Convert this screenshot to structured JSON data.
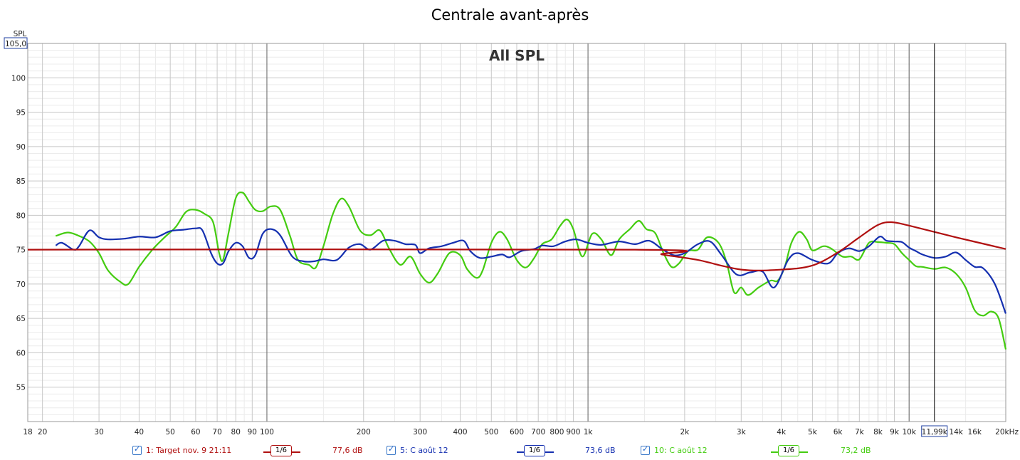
{
  "window": {
    "title": "Centrale avant-après"
  },
  "chart_data": {
    "type": "line",
    "title": "Centrale avant-après",
    "subtitle": "All SPL",
    "xscale": "log",
    "xlim": [
      18,
      20000
    ],
    "ylim": [
      50,
      105
    ],
    "ylabel": "SPL",
    "y_top_box": "105,0",
    "cursor_label": "11,99k",
    "cursor_x": 11990,
    "grid": true,
    "y_ticks": [
      55,
      60,
      65,
      70,
      75,
      80,
      85,
      90,
      95,
      100
    ],
    "x_ticks": [
      {
        "v": 18,
        "l": "18"
      },
      {
        "v": 20,
        "l": "20"
      },
      {
        "v": 30,
        "l": "30"
      },
      {
        "v": 40,
        "l": "40"
      },
      {
        "v": 50,
        "l": "50"
      },
      {
        "v": 60,
        "l": "60"
      },
      {
        "v": 70,
        "l": "70"
      },
      {
        "v": 80,
        "l": "80"
      },
      {
        "v": 90,
        "l": "90"
      },
      {
        "v": 100,
        "l": "100"
      },
      {
        "v": 200,
        "l": "200"
      },
      {
        "v": 300,
        "l": "300"
      },
      {
        "v": 400,
        "l": "400"
      },
      {
        "v": 500,
        "l": "500"
      },
      {
        "v": 600,
        "l": "600"
      },
      {
        "v": 700,
        "l": "700"
      },
      {
        "v": 800,
        "l": "800"
      },
      {
        "v": 900,
        "l": "900"
      },
      {
        "v": 1000,
        "l": "1k"
      },
      {
        "v": 2000,
        "l": "2k"
      },
      {
        "v": 3000,
        "l": "3k"
      },
      {
        "v": 4000,
        "l": "4k"
      },
      {
        "v": 5000,
        "l": "5k"
      },
      {
        "v": 6000,
        "l": "6k"
      },
      {
        "v": 7000,
        "l": "7k"
      },
      {
        "v": 8000,
        "l": "8k"
      },
      {
        "v": 9000,
        "l": "9k"
      },
      {
        "v": 10000,
        "l": "10k"
      },
      {
        "v": 14000,
        "l": "14k"
      },
      {
        "v": 16000,
        "l": "16k"
      },
      {
        "v": 20000,
        "l": "20kHz"
      }
    ],
    "series": [
      {
        "name": "1: Target nov. 9 21:11",
        "color": "#b01010",
        "smoothing": "1/6",
        "level": "77,6 dB",
        "points": [
          [
            18,
            75
          ],
          [
            1400,
            75
          ],
          [
            1700,
            74.3
          ],
          [
            2200,
            73.5
          ],
          [
            3000,
            72.1
          ],
          [
            4000,
            72.1
          ],
          [
            5000,
            72.7
          ],
          [
            6000,
            74.6
          ],
          [
            7000,
            76.8
          ],
          [
            8000,
            78.6
          ],
          [
            8800,
            79
          ],
          [
            10000,
            78.5
          ],
          [
            14000,
            76.8
          ],
          [
            20000,
            75.1
          ]
        ]
      },
      {
        "name": "5: C août 12",
        "color": "#1530b0",
        "smoothing": "1/6",
        "level": "73,6 dB",
        "points": [
          [
            22,
            75.6
          ],
          [
            23,
            76
          ],
          [
            25,
            75
          ],
          [
            26,
            75.5
          ],
          [
            28,
            77.8
          ],
          [
            30,
            76.8
          ],
          [
            32,
            76.5
          ],
          [
            36,
            76.6
          ],
          [
            40,
            76.9
          ],
          [
            45,
            76.8
          ],
          [
            50,
            77.7
          ],
          [
            55,
            77.9
          ],
          [
            60,
            78.1
          ],
          [
            63,
            77.8
          ],
          [
            67,
            74.5
          ],
          [
            70,
            73
          ],
          [
            73,
            73
          ],
          [
            76,
            74.8
          ],
          [
            80,
            76
          ],
          [
            84,
            75.5
          ],
          [
            88,
            73.8
          ],
          [
            92,
            74.2
          ],
          [
            97,
            77.3
          ],
          [
            103,
            78
          ],
          [
            110,
            77.1
          ],
          [
            120,
            74
          ],
          [
            130,
            73.3
          ],
          [
            140,
            73.3
          ],
          [
            150,
            73.6
          ],
          [
            165,
            73.5
          ],
          [
            180,
            75.3
          ],
          [
            195,
            75.8
          ],
          [
            210,
            75
          ],
          [
            230,
            76.3
          ],
          [
            250,
            76.3
          ],
          [
            270,
            75.8
          ],
          [
            290,
            75.7
          ],
          [
            300,
            74.5
          ],
          [
            320,
            75.2
          ],
          [
            350,
            75.5
          ],
          [
            380,
            76
          ],
          [
            410,
            76.3
          ],
          [
            430,
            74.8
          ],
          [
            460,
            73.8
          ],
          [
            500,
            74
          ],
          [
            540,
            74.3
          ],
          [
            570,
            73.9
          ],
          [
            620,
            74.8
          ],
          [
            680,
            75.1
          ],
          [
            720,
            75.6
          ],
          [
            780,
            75.5
          ],
          [
            850,
            76.2
          ],
          [
            920,
            76.5
          ],
          [
            1000,
            76
          ],
          [
            1100,
            75.7
          ],
          [
            1250,
            76.2
          ],
          [
            1400,
            75.8
          ],
          [
            1550,
            76.3
          ],
          [
            1700,
            75.1
          ],
          [
            1850,
            74.2
          ],
          [
            2000,
            74.5
          ],
          [
            2200,
            75.8
          ],
          [
            2400,
            76.2
          ],
          [
            2600,
            74.3
          ],
          [
            2900,
            71.4
          ],
          [
            3200,
            71.7
          ],
          [
            3500,
            71.8
          ],
          [
            3800,
            69.5
          ],
          [
            4200,
            73.5
          ],
          [
            4500,
            74.5
          ],
          [
            5000,
            73.5
          ],
          [
            5600,
            73
          ],
          [
            6000,
            74.5
          ],
          [
            6500,
            75.2
          ],
          [
            7000,
            74.8
          ],
          [
            7500,
            75.5
          ],
          [
            8100,
            76.9
          ],
          [
            8500,
            76.3
          ],
          [
            9000,
            76.2
          ],
          [
            9500,
            76.1
          ],
          [
            10000,
            75.3
          ],
          [
            10500,
            74.8
          ],
          [
            11000,
            74.3
          ],
          [
            12000,
            73.8
          ],
          [
            13000,
            74
          ],
          [
            14000,
            74.6
          ],
          [
            15000,
            73.5
          ],
          [
            16000,
            72.5
          ],
          [
            17000,
            72.3
          ],
          [
            18500,
            70
          ],
          [
            20000,
            65.7
          ]
        ]
      },
      {
        "name": "10: C août 12",
        "color": "#44cc10",
        "smoothing": "1/6",
        "level": "73,2 dB",
        "points": [
          [
            22,
            77
          ],
          [
            24,
            77.5
          ],
          [
            26,
            77
          ],
          [
            28,
            76.2
          ],
          [
            30,
            74.5
          ],
          [
            32,
            72
          ],
          [
            35,
            70.3
          ],
          [
            37,
            70
          ],
          [
            40,
            72.5
          ],
          [
            44,
            75
          ],
          [
            48,
            76.8
          ],
          [
            52,
            78.3
          ],
          [
            56,
            80.5
          ],
          [
            60,
            80.8
          ],
          [
            64,
            80.2
          ],
          [
            68,
            79
          ],
          [
            71,
            74.5
          ],
          [
            73,
            73.5
          ],
          [
            76,
            77.5
          ],
          [
            80,
            82.5
          ],
          [
            84,
            83.3
          ],
          [
            88,
            82
          ],
          [
            92,
            80.8
          ],
          [
            97,
            80.6
          ],
          [
            103,
            81.3
          ],
          [
            110,
            80.8
          ],
          [
            118,
            77
          ],
          [
            125,
            73.5
          ],
          [
            135,
            72.8
          ],
          [
            142,
            72.4
          ],
          [
            150,
            75.5
          ],
          [
            160,
            80
          ],
          [
            170,
            82.4
          ],
          [
            180,
            81.3
          ],
          [
            195,
            77.8
          ],
          [
            210,
            77.1
          ],
          [
            225,
            77.8
          ],
          [
            240,
            75.2
          ],
          [
            260,
            72.8
          ],
          [
            280,
            74
          ],
          [
            300,
            71.5
          ],
          [
            320,
            70.2
          ],
          [
            340,
            71.5
          ],
          [
            370,
            74.5
          ],
          [
            400,
            74.2
          ],
          [
            420,
            72.2
          ],
          [
            450,
            70.9
          ],
          [
            470,
            72
          ],
          [
            500,
            76
          ],
          [
            530,
            77.6
          ],
          [
            560,
            76.5
          ],
          [
            600,
            73.5
          ],
          [
            640,
            72.4
          ],
          [
            680,
            73.8
          ],
          [
            720,
            75.8
          ],
          [
            770,
            76.5
          ],
          [
            820,
            78.5
          ],
          [
            860,
            79.4
          ],
          [
            900,
            78
          ],
          [
            960,
            74
          ],
          [
            1030,
            77.3
          ],
          [
            1100,
            76.5
          ],
          [
            1180,
            74.2
          ],
          [
            1250,
            76.5
          ],
          [
            1350,
            78
          ],
          [
            1440,
            79.2
          ],
          [
            1520,
            78
          ],
          [
            1620,
            77.4
          ],
          [
            1720,
            74.5
          ],
          [
            1820,
            72.5
          ],
          [
            1920,
            73
          ],
          [
            2050,
            74.8
          ],
          [
            2200,
            75
          ],
          [
            2350,
            76.8
          ],
          [
            2550,
            76
          ],
          [
            2700,
            73.2
          ],
          [
            2850,
            68.8
          ],
          [
            3000,
            69.5
          ],
          [
            3150,
            68.4
          ],
          [
            3400,
            69.5
          ],
          [
            3700,
            70.5
          ],
          [
            3900,
            70.5
          ],
          [
            4100,
            72.5
          ],
          [
            4300,
            76
          ],
          [
            4550,
            77.6
          ],
          [
            4800,
            76.5
          ],
          [
            5000,
            74.9
          ],
          [
            5400,
            75.5
          ],
          [
            5700,
            75.2
          ],
          [
            6200,
            74
          ],
          [
            6600,
            74
          ],
          [
            7000,
            73.6
          ],
          [
            7500,
            76
          ],
          [
            8000,
            76.1
          ],
          [
            8500,
            76
          ],
          [
            9000,
            75.8
          ],
          [
            9500,
            74.5
          ],
          [
            10000,
            73.5
          ],
          [
            10500,
            72.6
          ],
          [
            11000,
            72.5
          ],
          [
            12000,
            72.2
          ],
          [
            13000,
            72.4
          ],
          [
            14000,
            71.5
          ],
          [
            15000,
            69.5
          ],
          [
            16000,
            66.2
          ],
          [
            17000,
            65.4
          ],
          [
            18000,
            66
          ],
          [
            19000,
            65
          ],
          [
            20000,
            60.5
          ]
        ]
      }
    ]
  },
  "legend": [
    {
      "label": "1: Target nov. 9 21:11",
      "smoothing": "1/6",
      "level": "77,6 dB",
      "color": "#b01010"
    },
    {
      "label": "5: C août 12",
      "smoothing": "1/6",
      "level": "73,6 dB",
      "color": "#1530b0"
    },
    {
      "label": "10: C août 12",
      "smoothing": "1/6",
      "level": "73,2 dB",
      "color": "#44cc10"
    }
  ]
}
